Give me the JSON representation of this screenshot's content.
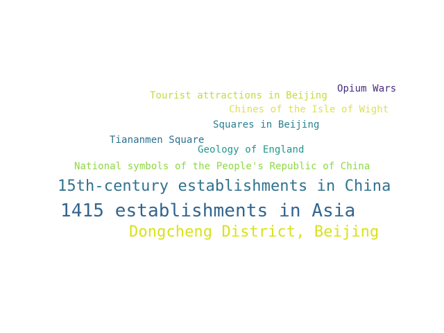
{
  "words": [
    {
      "text": "Opium Wars",
      "color": "#472c7a"
    },
    {
      "text": "Tourist attractions in Beijing",
      "color": "#c8d840"
    },
    {
      "text": "Chines of the Isle of Wight",
      "color": "#dde05a"
    },
    {
      "text": "Squares in Beijing",
      "color": "#27808e"
    },
    {
      "text": "Tiananmen Square",
      "color": "#2c6f8e"
    },
    {
      "text": "Geology of England",
      "color": "#1f968b"
    },
    {
      "text": "National symbols of the People's Republic of China",
      "color": "#8fd744"
    },
    {
      "text": "15th-century establishments in China",
      "color": "#30728e"
    },
    {
      "text": "1415 establishments in Asia",
      "color": "#32648e"
    },
    {
      "text": "Dongcheng District, Beijing",
      "color": "#d8e219"
    }
  ]
}
